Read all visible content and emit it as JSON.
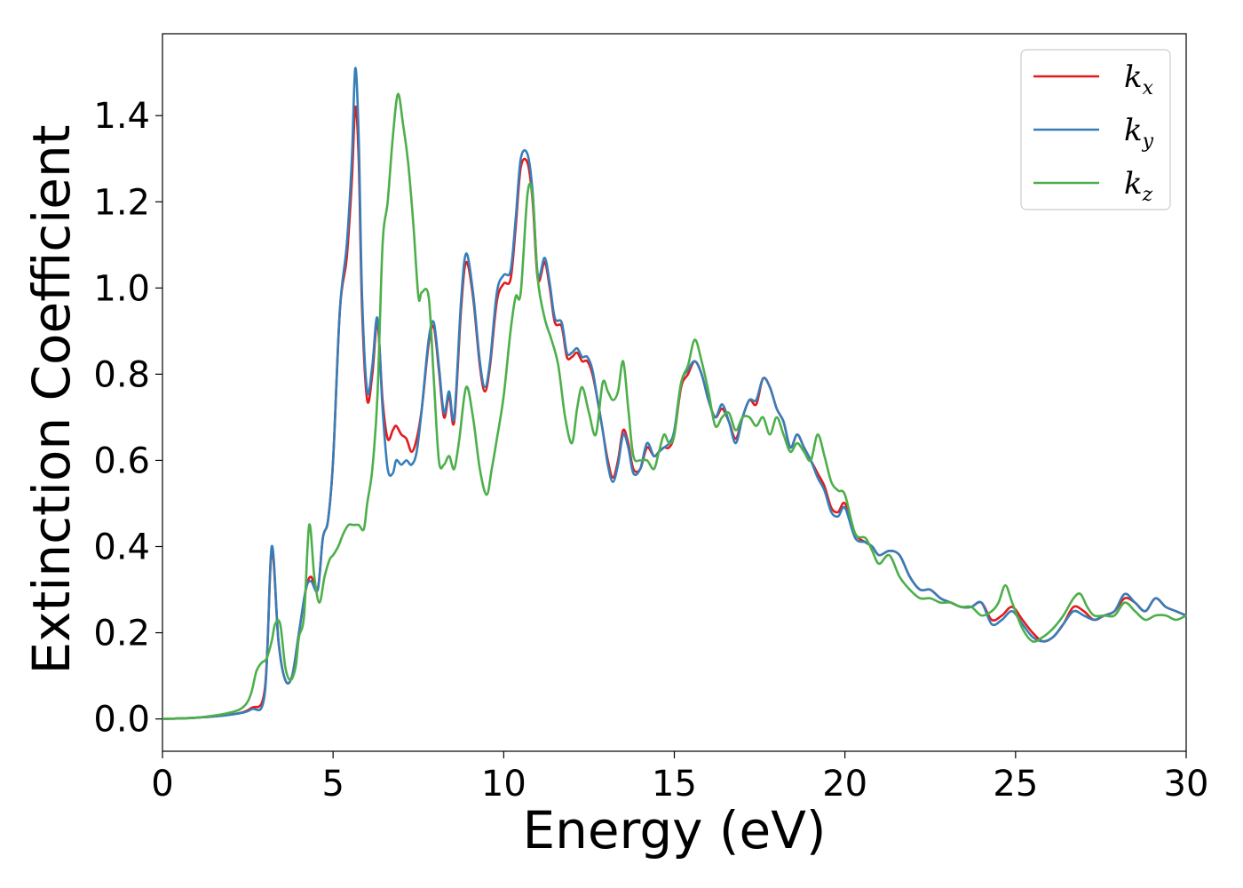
{
  "chart_data": {
    "type": "line",
    "title": "",
    "xlabel": "Energy (eV)",
    "ylabel": "Extinction Coefficient",
    "xlim": [
      0,
      30
    ],
    "ylim": [
      -0.075,
      1.59
    ],
    "xticks": [
      0,
      5,
      10,
      15,
      20,
      25,
      30
    ],
    "yticks": [
      0.0,
      0.2,
      0.4,
      0.6,
      0.8,
      1.0,
      1.2,
      1.4
    ],
    "ytick_labels": [
      "0.0",
      "0.2",
      "0.4",
      "0.6",
      "0.8",
      "1.0",
      "1.2",
      "1.4"
    ],
    "grid": false,
    "legend_position": "top-right",
    "series": [
      {
        "name": "k_x",
        "legend_base": "k",
        "legend_sub": "x",
        "color": "#e41a1c",
        "x": [
          0,
          1,
          2,
          2.6,
          3.0,
          3.2,
          3.4,
          3.6,
          3.8,
          4.0,
          4.2,
          4.35,
          4.55,
          4.7,
          4.85,
          5.0,
          5.2,
          5.4,
          5.55,
          5.65,
          5.75,
          5.85,
          6.0,
          6.15,
          6.3,
          6.45,
          6.6,
          6.75,
          6.85,
          7.0,
          7.15,
          7.3,
          7.45,
          7.6,
          7.8,
          7.95,
          8.1,
          8.25,
          8.4,
          8.55,
          8.75,
          8.9,
          9.1,
          9.3,
          9.45,
          9.6,
          9.8,
          10.0,
          10.2,
          10.35,
          10.5,
          10.7,
          10.85,
          11.0,
          11.2,
          11.35,
          11.5,
          11.7,
          11.85,
          12.0,
          12.15,
          12.3,
          12.45,
          12.6,
          12.75,
          12.9,
          13.05,
          13.2,
          13.35,
          13.5,
          13.65,
          13.8,
          14.0,
          14.2,
          14.4,
          14.55,
          14.7,
          14.85,
          15.0,
          15.2,
          15.4,
          15.6,
          15.8,
          16.0,
          16.2,
          16.4,
          16.6,
          16.8,
          17.0,
          17.2,
          17.4,
          17.6,
          17.8,
          18.0,
          18.2,
          18.4,
          18.6,
          18.8,
          19.0,
          19.2,
          19.4,
          19.6,
          19.8,
          20.0,
          20.3,
          20.6,
          20.8,
          21.0,
          21.3,
          21.6,
          21.9,
          22.2,
          22.5,
          22.8,
          23.1,
          23.4,
          23.7,
          24.0,
          24.3,
          24.6,
          24.9,
          25.2,
          25.5,
          25.8,
          26.1,
          26.4,
          26.7,
          27.0,
          27.3,
          27.6,
          27.9,
          28.2,
          28.5,
          28.8,
          29.1,
          29.4,
          29.7,
          30.0
        ],
        "y": [
          0.0,
          0.003,
          0.01,
          0.025,
          0.07,
          0.39,
          0.18,
          0.09,
          0.1,
          0.2,
          0.3,
          0.33,
          0.3,
          0.42,
          0.46,
          0.6,
          0.95,
          1.07,
          1.25,
          1.42,
          1.3,
          0.95,
          0.74,
          0.8,
          0.92,
          0.74,
          0.65,
          0.67,
          0.68,
          0.66,
          0.65,
          0.62,
          0.65,
          0.72,
          0.87,
          0.91,
          0.81,
          0.7,
          0.75,
          0.69,
          0.95,
          1.06,
          0.98,
          0.82,
          0.76,
          0.82,
          0.97,
          1.01,
          1.02,
          1.14,
          1.28,
          1.29,
          1.2,
          1.02,
          1.06,
          1.0,
          0.92,
          0.91,
          0.84,
          0.84,
          0.85,
          0.83,
          0.83,
          0.8,
          0.74,
          0.67,
          0.6,
          0.56,
          0.6,
          0.67,
          0.64,
          0.58,
          0.58,
          0.63,
          0.61,
          0.62,
          0.63,
          0.63,
          0.66,
          0.77,
          0.8,
          0.83,
          0.8,
          0.74,
          0.7,
          0.72,
          0.69,
          0.65,
          0.7,
          0.74,
          0.73,
          0.79,
          0.77,
          0.72,
          0.69,
          0.63,
          0.66,
          0.63,
          0.6,
          0.57,
          0.54,
          0.49,
          0.48,
          0.5,
          0.43,
          0.41,
          0.4,
          0.38,
          0.39,
          0.38,
          0.33,
          0.3,
          0.3,
          0.28,
          0.27,
          0.26,
          0.26,
          0.27,
          0.23,
          0.24,
          0.26,
          0.23,
          0.2,
          0.18,
          0.19,
          0.22,
          0.26,
          0.25,
          0.23,
          0.24,
          0.25,
          0.28,
          0.27,
          0.25,
          0.28,
          0.26,
          0.25,
          0.24
        ]
      },
      {
        "name": "k_y",
        "legend_base": "k",
        "legend_sub": "y",
        "color": "#377eb8",
        "x": [
          0,
          1,
          2,
          2.6,
          3.0,
          3.2,
          3.4,
          3.6,
          3.8,
          4.0,
          4.2,
          4.35,
          4.55,
          4.7,
          4.85,
          5.0,
          5.2,
          5.4,
          5.55,
          5.65,
          5.75,
          5.85,
          6.0,
          6.15,
          6.3,
          6.45,
          6.6,
          6.75,
          6.85,
          7.0,
          7.15,
          7.3,
          7.45,
          7.6,
          7.8,
          7.95,
          8.1,
          8.25,
          8.4,
          8.55,
          8.75,
          8.9,
          9.1,
          9.3,
          9.45,
          9.6,
          9.8,
          10.0,
          10.2,
          10.35,
          10.5,
          10.7,
          10.85,
          11.0,
          11.2,
          11.35,
          11.5,
          11.7,
          11.85,
          12.0,
          12.15,
          12.3,
          12.45,
          12.6,
          12.75,
          12.9,
          13.05,
          13.2,
          13.35,
          13.5,
          13.65,
          13.8,
          14.0,
          14.2,
          14.4,
          14.55,
          14.7,
          14.85,
          15.0,
          15.2,
          15.4,
          15.6,
          15.8,
          16.0,
          16.2,
          16.4,
          16.6,
          16.8,
          17.0,
          17.2,
          17.4,
          17.6,
          17.8,
          18.0,
          18.2,
          18.4,
          18.6,
          18.8,
          19.0,
          19.2,
          19.4,
          19.6,
          19.8,
          20.0,
          20.3,
          20.6,
          20.8,
          21.0,
          21.3,
          21.6,
          21.9,
          22.2,
          22.5,
          22.8,
          23.1,
          23.4,
          23.7,
          24.0,
          24.3,
          24.6,
          24.9,
          25.2,
          25.5,
          25.8,
          26.1,
          26.4,
          26.7,
          27.0,
          27.3,
          27.6,
          27.9,
          28.2,
          28.5,
          28.8,
          29.1,
          29.4,
          29.7,
          30.0
        ],
        "y": [
          0.0,
          0.003,
          0.01,
          0.022,
          0.06,
          0.4,
          0.18,
          0.09,
          0.1,
          0.2,
          0.3,
          0.32,
          0.3,
          0.42,
          0.46,
          0.6,
          0.95,
          1.1,
          1.3,
          1.51,
          1.35,
          0.98,
          0.76,
          0.82,
          0.93,
          0.72,
          0.58,
          0.57,
          0.6,
          0.59,
          0.6,
          0.59,
          0.62,
          0.72,
          0.88,
          0.92,
          0.82,
          0.71,
          0.76,
          0.7,
          0.97,
          1.08,
          0.99,
          0.83,
          0.77,
          0.83,
          0.99,
          1.03,
          1.04,
          1.16,
          1.3,
          1.31,
          1.22,
          1.03,
          1.07,
          1.01,
          0.93,
          0.92,
          0.85,
          0.85,
          0.86,
          0.84,
          0.84,
          0.81,
          0.74,
          0.67,
          0.59,
          0.55,
          0.59,
          0.66,
          0.63,
          0.57,
          0.58,
          0.64,
          0.61,
          0.62,
          0.63,
          0.64,
          0.67,
          0.78,
          0.81,
          0.83,
          0.8,
          0.74,
          0.7,
          0.73,
          0.69,
          0.64,
          0.7,
          0.74,
          0.74,
          0.79,
          0.77,
          0.72,
          0.69,
          0.63,
          0.66,
          0.63,
          0.6,
          0.56,
          0.53,
          0.48,
          0.47,
          0.49,
          0.42,
          0.41,
          0.4,
          0.38,
          0.39,
          0.38,
          0.33,
          0.3,
          0.3,
          0.28,
          0.27,
          0.26,
          0.26,
          0.27,
          0.22,
          0.23,
          0.25,
          0.22,
          0.19,
          0.18,
          0.19,
          0.22,
          0.25,
          0.24,
          0.23,
          0.24,
          0.25,
          0.29,
          0.27,
          0.25,
          0.28,
          0.26,
          0.25,
          0.24
        ]
      },
      {
        "name": "k_z",
        "legend_base": "k",
        "legend_sub": "z",
        "color": "#4daf4a",
        "x": [
          0,
          1,
          2,
          2.4,
          2.6,
          2.75,
          2.9,
          3.05,
          3.2,
          3.3,
          3.45,
          3.6,
          3.75,
          3.9,
          4.0,
          4.15,
          4.3,
          4.45,
          4.6,
          4.75,
          4.9,
          5.0,
          5.15,
          5.3,
          5.45,
          5.6,
          5.75,
          5.9,
          6.0,
          6.15,
          6.3,
          6.45,
          6.6,
          6.75,
          6.9,
          7.05,
          7.2,
          7.35,
          7.5,
          7.6,
          7.8,
          7.95,
          8.1,
          8.25,
          8.4,
          8.55,
          8.7,
          8.9,
          9.1,
          9.3,
          9.5,
          9.65,
          9.8,
          10.0,
          10.2,
          10.35,
          10.5,
          10.7,
          10.85,
          11.0,
          11.2,
          11.4,
          11.6,
          11.8,
          12.0,
          12.15,
          12.3,
          12.5,
          12.7,
          12.9,
          13.05,
          13.2,
          13.35,
          13.5,
          13.65,
          13.8,
          14.0,
          14.2,
          14.4,
          14.55,
          14.7,
          14.85,
          15.0,
          15.2,
          15.4,
          15.6,
          15.8,
          16.0,
          16.2,
          16.4,
          16.6,
          16.8,
          17.0,
          17.2,
          17.4,
          17.6,
          17.8,
          18.0,
          18.2,
          18.4,
          18.6,
          18.8,
          19.0,
          19.2,
          19.4,
          19.6,
          19.8,
          20.0,
          20.3,
          20.6,
          20.8,
          21.0,
          21.3,
          21.6,
          21.9,
          22.2,
          22.5,
          22.8,
          23.1,
          23.4,
          23.7,
          24.0,
          24.3,
          24.5,
          24.7,
          24.9,
          25.2,
          25.5,
          25.8,
          26.1,
          26.4,
          26.7,
          26.9,
          27.1,
          27.3,
          27.6,
          27.9,
          28.2,
          28.5,
          28.8,
          29.1,
          29.4,
          29.7,
          30.0
        ],
        "y": [
          0.0,
          0.003,
          0.015,
          0.03,
          0.06,
          0.11,
          0.13,
          0.14,
          0.18,
          0.22,
          0.22,
          0.12,
          0.09,
          0.12,
          0.19,
          0.24,
          0.45,
          0.33,
          0.27,
          0.33,
          0.37,
          0.38,
          0.4,
          0.43,
          0.45,
          0.45,
          0.45,
          0.44,
          0.5,
          0.58,
          0.75,
          1.1,
          1.2,
          1.35,
          1.45,
          1.38,
          1.29,
          1.15,
          0.98,
          0.99,
          0.98,
          0.79,
          0.6,
          0.59,
          0.61,
          0.58,
          0.65,
          0.77,
          0.7,
          0.58,
          0.52,
          0.58,
          0.65,
          0.75,
          0.9,
          0.98,
          0.99,
          1.22,
          1.21,
          1.02,
          0.93,
          0.88,
          0.82,
          0.7,
          0.64,
          0.72,
          0.77,
          0.71,
          0.66,
          0.78,
          0.76,
          0.74,
          0.76,
          0.83,
          0.72,
          0.61,
          0.6,
          0.6,
          0.58,
          0.62,
          0.66,
          0.64,
          0.66,
          0.78,
          0.82,
          0.88,
          0.83,
          0.76,
          0.68,
          0.7,
          0.71,
          0.67,
          0.7,
          0.7,
          0.68,
          0.7,
          0.66,
          0.7,
          0.66,
          0.62,
          0.64,
          0.62,
          0.6,
          0.66,
          0.61,
          0.55,
          0.53,
          0.52,
          0.43,
          0.42,
          0.39,
          0.36,
          0.38,
          0.33,
          0.3,
          0.28,
          0.28,
          0.27,
          0.27,
          0.26,
          0.26,
          0.24,
          0.25,
          0.27,
          0.31,
          0.27,
          0.21,
          0.18,
          0.19,
          0.21,
          0.24,
          0.28,
          0.29,
          0.26,
          0.24,
          0.24,
          0.24,
          0.27,
          0.25,
          0.23,
          0.24,
          0.24,
          0.23,
          0.24
        ]
      }
    ]
  }
}
